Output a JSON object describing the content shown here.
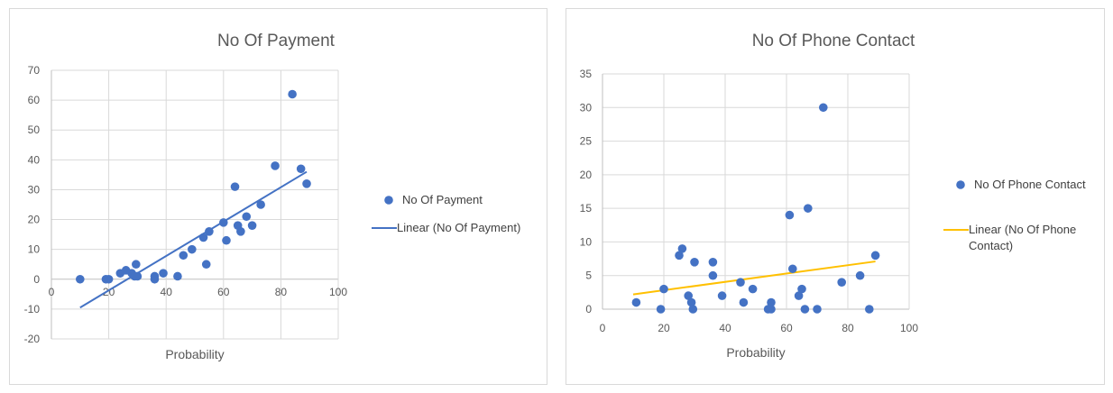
{
  "chart_data": [
    {
      "type": "scatter",
      "title": "No Of Payment",
      "xlabel": "Probability",
      "ylabel": "",
      "xlim": [
        0,
        100
      ],
      "ylim": [
        -20,
        70
      ],
      "xticks": [
        0,
        20,
        40,
        60,
        80,
        100
      ],
      "yticks": [
        -20,
        -10,
        0,
        10,
        20,
        30,
        40,
        50,
        60,
        70
      ],
      "grid": "vertical-and-horizontal",
      "legend_position": "right",
      "series": [
        {
          "name": "No Of Payment",
          "color": "#4472c4",
          "points": [
            [
              10,
              0
            ],
            [
              19,
              0
            ],
            [
              20,
              0
            ],
            [
              24,
              2
            ],
            [
              26,
              3
            ],
            [
              28,
              2
            ],
            [
              29,
              1
            ],
            [
              29.5,
              5
            ],
            [
              30,
              1
            ],
            [
              36,
              0
            ],
            [
              36,
              1
            ],
            [
              39,
              2
            ],
            [
              44,
              1
            ],
            [
              46,
              8
            ],
            [
              49,
              10
            ],
            [
              53,
              14
            ],
            [
              54,
              5
            ],
            [
              55,
              16
            ],
            [
              60,
              19
            ],
            [
              61,
              13
            ],
            [
              64,
              31
            ],
            [
              65,
              18
            ],
            [
              66,
              16
            ],
            [
              68,
              21
            ],
            [
              70,
              18
            ],
            [
              73,
              25
            ],
            [
              78,
              38
            ],
            [
              84,
              62
            ],
            [
              87,
              37
            ],
            [
              89,
              32
            ]
          ]
        },
        {
          "name": "Linear (No Of Payment)",
          "color": "#4472c4",
          "line": [
            [
              10,
              -9.5
            ],
            [
              89,
              36
            ]
          ]
        }
      ]
    },
    {
      "type": "scatter",
      "title": "No Of Phone Contact",
      "xlabel": "Probability",
      "ylabel": "",
      "xlim": [
        0,
        100
      ],
      "ylim": [
        0,
        35
      ],
      "xticks": [
        0,
        20,
        40,
        60,
        80,
        100
      ],
      "yticks": [
        0,
        5,
        10,
        15,
        20,
        25,
        30,
        35
      ],
      "grid": "vertical-and-horizontal",
      "legend_position": "right",
      "series": [
        {
          "name": "No Of Phone Contact",
          "color": "#4472c4",
          "points": [
            [
              11,
              1
            ],
            [
              19,
              0
            ],
            [
              20,
              3
            ],
            [
              25,
              8
            ],
            [
              26,
              9
            ],
            [
              28,
              2
            ],
            [
              29,
              1
            ],
            [
              29.5,
              0
            ],
            [
              30,
              7
            ],
            [
              36,
              7
            ],
            [
              36,
              5
            ],
            [
              39,
              2
            ],
            [
              45,
              4
            ],
            [
              46,
              1
            ],
            [
              49,
              3
            ],
            [
              54,
              0
            ],
            [
              55,
              0
            ],
            [
              55,
              1
            ],
            [
              61,
              14
            ],
            [
              62,
              6
            ],
            [
              64,
              2
            ],
            [
              65,
              3
            ],
            [
              66,
              0
            ],
            [
              67,
              15
            ],
            [
              70,
              0
            ],
            [
              72,
              30
            ],
            [
              78,
              4
            ],
            [
              84,
              5
            ],
            [
              87,
              0
            ],
            [
              89,
              8
            ]
          ]
        },
        {
          "name": "Linear (No Of Phone Contact)",
          "legend_lines": [
            "Linear (No Of Phone",
            "Contact)"
          ],
          "color": "#ffc000",
          "line": [
            [
              10,
              2.2
            ],
            [
              89,
              7.1
            ]
          ]
        }
      ]
    }
  ]
}
